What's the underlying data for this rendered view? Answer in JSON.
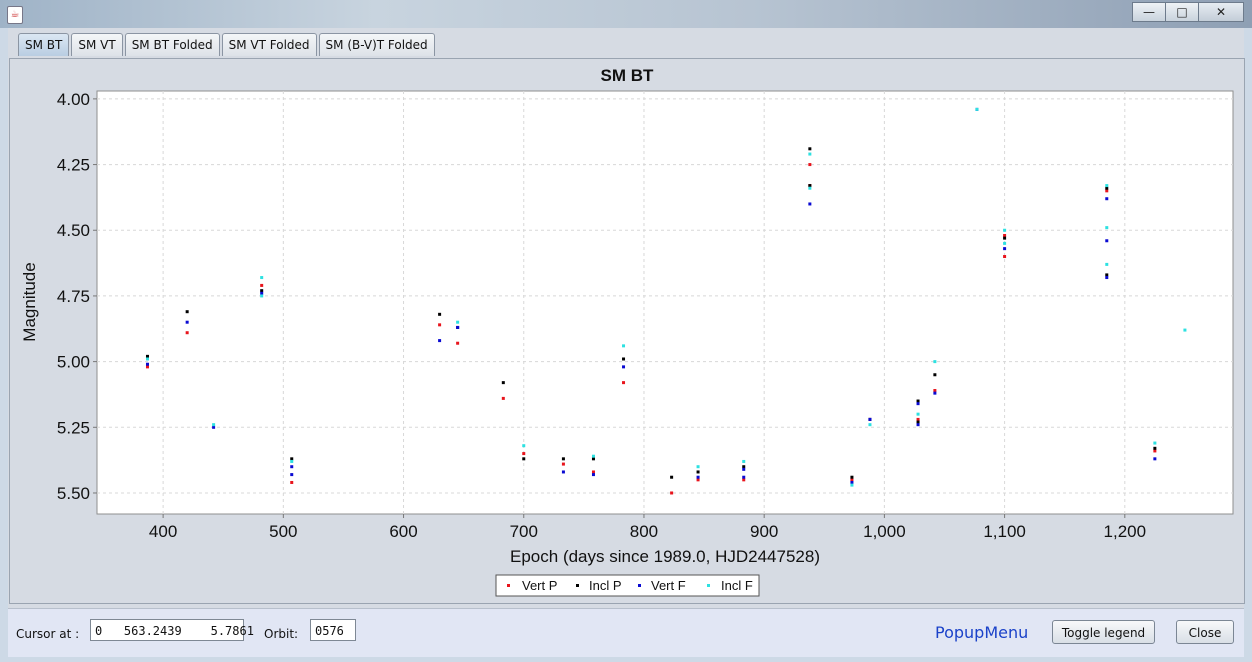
{
  "window": {
    "app_icon": "java-cup-icon",
    "minimize_icon": "minimize-icon",
    "maximize_icon": "maximize-icon",
    "close_icon": "close-icon"
  },
  "tabs": [
    {
      "label": "SM BT",
      "active": true
    },
    {
      "label": "SM VT",
      "active": false
    },
    {
      "label": "SM BT Folded",
      "active": false
    },
    {
      "label": "SM VT Folded",
      "active": false
    },
    {
      "label": "SM (B-V)T Folded",
      "active": false
    }
  ],
  "chart_data": {
    "type": "scatter",
    "title": "SM BT",
    "xlabel": "Epoch (days since 1989.0, HJD2447528)",
    "ylabel": "Magnitude",
    "xlim": [
      345,
      1290
    ],
    "ylim": [
      5.58,
      3.97
    ],
    "y_inverted": true,
    "x_ticks": [
      "400",
      "500",
      "600",
      "700",
      "800",
      "900",
      "1,000",
      "1,100",
      "1,200"
    ],
    "x_tick_values": [
      400,
      500,
      600,
      700,
      800,
      900,
      1000,
      1100,
      1200
    ],
    "y_ticks": [
      "4.00",
      "4.25",
      "4.50",
      "4.75",
      "5.00",
      "5.25",
      "5.50"
    ],
    "y_tick_values": [
      4.0,
      4.25,
      4.5,
      4.75,
      5.0,
      5.25,
      5.5
    ],
    "grid": true,
    "legend_position": "bottom",
    "series": [
      {
        "name": "Vert P",
        "color": "#e8141c",
        "points": [
          [
            387,
            5.02
          ],
          [
            420,
            4.89
          ],
          [
            482,
            4.71
          ],
          [
            507,
            5.46
          ],
          [
            630,
            4.86
          ],
          [
            645,
            4.93
          ],
          [
            683,
            5.14
          ],
          [
            700,
            5.35
          ],
          [
            733,
            5.39
          ],
          [
            758,
            5.42
          ],
          [
            783,
            5.08
          ],
          [
            823,
            5.5
          ],
          [
            845,
            5.45
          ],
          [
            883,
            5.45
          ],
          [
            938,
            4.25
          ],
          [
            938,
            4.33
          ],
          [
            973,
            5.45
          ],
          [
            988,
            5.22
          ],
          [
            1028,
            5.22
          ],
          [
            1042,
            5.11
          ],
          [
            1100,
            4.6
          ],
          [
            1100,
            4.52
          ],
          [
            1185,
            4.35
          ],
          [
            1225,
            5.34
          ]
        ]
      },
      {
        "name": "Incl P",
        "color": "#000000",
        "points": [
          [
            387,
            4.98
          ],
          [
            420,
            4.81
          ],
          [
            482,
            4.73
          ],
          [
            507,
            5.37
          ],
          [
            630,
            4.82
          ],
          [
            645,
            4.87
          ],
          [
            683,
            5.08
          ],
          [
            700,
            5.37
          ],
          [
            733,
            5.37
          ],
          [
            758,
            5.37
          ],
          [
            783,
            4.99
          ],
          [
            823,
            5.44
          ],
          [
            845,
            5.42
          ],
          [
            883,
            5.4
          ],
          [
            938,
            4.19
          ],
          [
            938,
            4.33
          ],
          [
            973,
            5.44
          ],
          [
            988,
            5.22
          ],
          [
            1028,
            5.15
          ],
          [
            1028,
            5.23
          ],
          [
            1042,
            5.05
          ],
          [
            1100,
            4.53
          ],
          [
            1185,
            4.34
          ],
          [
            1185,
            4.67
          ],
          [
            1225,
            5.33
          ]
        ]
      },
      {
        "name": "Vert F",
        "color": "#0a0ad2",
        "points": [
          [
            387,
            5.01
          ],
          [
            420,
            4.85
          ],
          [
            442,
            5.25
          ],
          [
            482,
            4.74
          ],
          [
            507,
            5.4
          ],
          [
            507,
            5.43
          ],
          [
            630,
            4.92
          ],
          [
            645,
            4.87
          ],
          [
            733,
            5.42
          ],
          [
            758,
            5.43
          ],
          [
            783,
            5.02
          ],
          [
            845,
            5.44
          ],
          [
            883,
            5.44
          ],
          [
            883,
            5.41
          ],
          [
            938,
            4.4
          ],
          [
            973,
            5.46
          ],
          [
            988,
            5.22
          ],
          [
            1028,
            5.24
          ],
          [
            1028,
            5.16
          ],
          [
            1042,
            5.12
          ],
          [
            1077,
            4.04
          ],
          [
            1100,
            4.57
          ],
          [
            1185,
            4.38
          ],
          [
            1185,
            4.54
          ],
          [
            1185,
            4.68
          ],
          [
            1225,
            5.37
          ]
        ]
      },
      {
        "name": "Incl F",
        "color": "#2de1e1",
        "points": [
          [
            387,
            4.99
          ],
          [
            442,
            5.24
          ],
          [
            482,
            4.68
          ],
          [
            482,
            4.75
          ],
          [
            507,
            5.38
          ],
          [
            645,
            4.85
          ],
          [
            700,
            5.32
          ],
          [
            758,
            5.36
          ],
          [
            783,
            4.94
          ],
          [
            845,
            5.4
          ],
          [
            883,
            5.38
          ],
          [
            938,
            4.21
          ],
          [
            938,
            4.34
          ],
          [
            973,
            5.47
          ],
          [
            988,
            5.24
          ],
          [
            1028,
            5.2
          ],
          [
            1042,
            5.0
          ],
          [
            1077,
            4.04
          ],
          [
            1100,
            4.5
          ],
          [
            1100,
            4.55
          ],
          [
            1185,
            4.33
          ],
          [
            1185,
            4.49
          ],
          [
            1185,
            4.63
          ],
          [
            1225,
            5.31
          ],
          [
            1250,
            4.88
          ]
        ]
      }
    ]
  },
  "bottom_bar": {
    "cursor_label": "Cursor at :",
    "cursor_value": "0   563.2439    5.7861",
    "orbit_label": "Orbit:",
    "orbit_value": "0576",
    "popup_menu_label": "PopupMenu",
    "toggle_legend_label": "Toggle legend",
    "close_label": "Close"
  }
}
